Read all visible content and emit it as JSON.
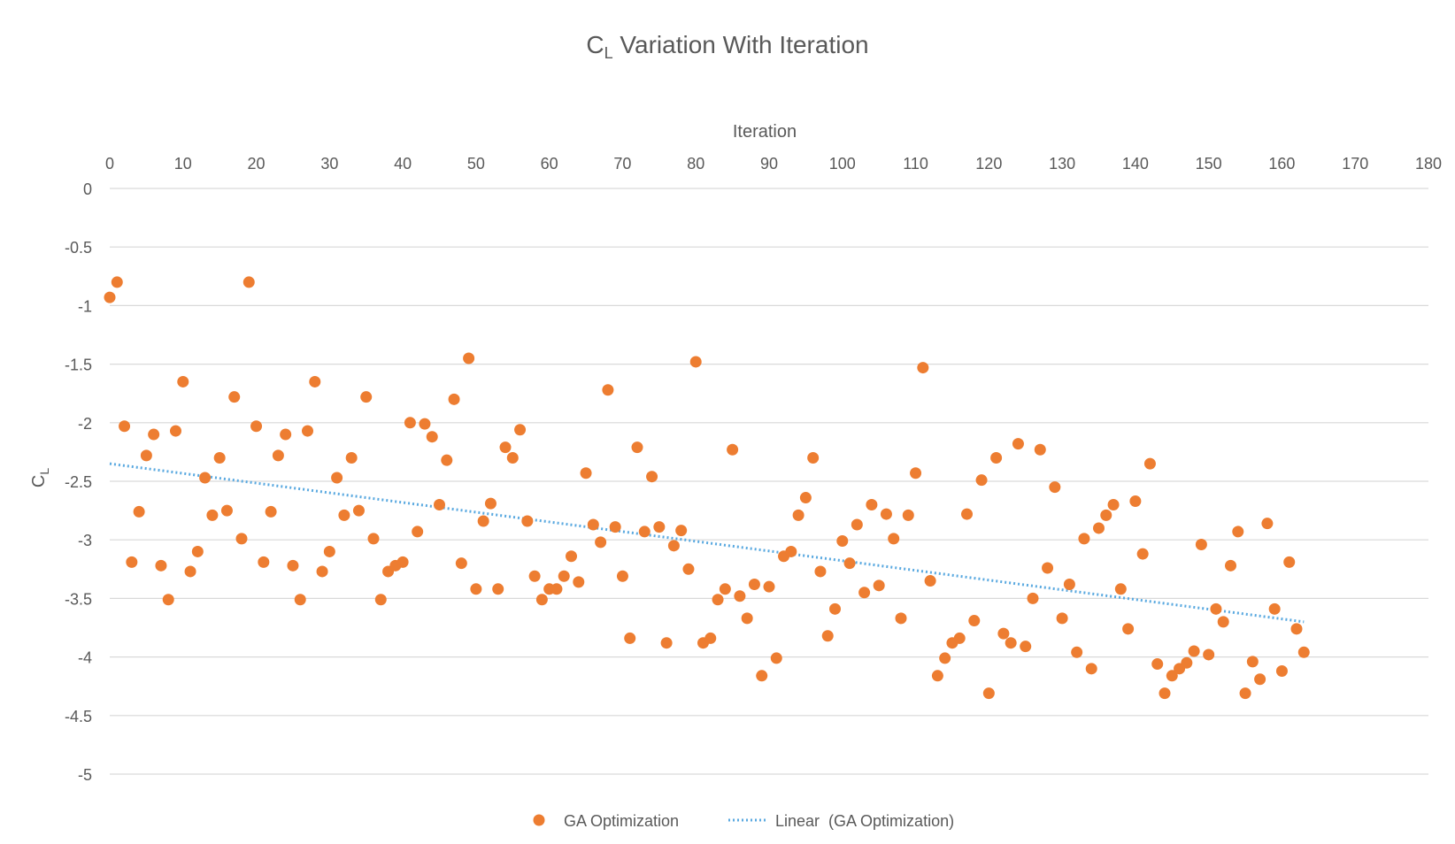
{
  "chart_data": {
    "type": "scatter",
    "title": "C",
    "title_subscript": "L",
    "title_rest": " Variation With Iteration",
    "xlabel": "Iteration",
    "xaxis_position": "top",
    "ylabel": "C",
    "ylabel_subscript": "L",
    "xlim": [
      0,
      180
    ],
    "ylim": [
      -5,
      0
    ],
    "x_ticks": [
      0,
      10,
      20,
      30,
      40,
      50,
      60,
      70,
      80,
      90,
      100,
      110,
      120,
      130,
      140,
      150,
      160,
      170,
      180
    ],
    "y_ticks": [
      0,
      -0.5,
      -1,
      -1.5,
      -2,
      -2.5,
      -3,
      -3.5,
      -4,
      -4.5,
      -5
    ],
    "grid": "horizontal",
    "legend_position": "bottom",
    "series": [
      {
        "name": "GA Optimization",
        "kind": "scatter",
        "color": "#ed7d31",
        "x": [
          0,
          1,
          2,
          3,
          4,
          5,
          6,
          7,
          8,
          9,
          10,
          11,
          12,
          13,
          14,
          15,
          16,
          17,
          18,
          19,
          20,
          21,
          22,
          23,
          24,
          25,
          26,
          27,
          28,
          29,
          30,
          31,
          32,
          33,
          34,
          35,
          36,
          37,
          38,
          39,
          40,
          41,
          42,
          43,
          44,
          45,
          46,
          47,
          48,
          49,
          50,
          51,
          52,
          53,
          54,
          55,
          56,
          57,
          58,
          59,
          60,
          61,
          62,
          63,
          64,
          65,
          66,
          67,
          68,
          69,
          70,
          71,
          72,
          73,
          74,
          75,
          76,
          77,
          78,
          79,
          80,
          81,
          82,
          83,
          84,
          85,
          86,
          87,
          88,
          89,
          90,
          91,
          92,
          93,
          94,
          95,
          96,
          97,
          98,
          99,
          100,
          101,
          102,
          103,
          104,
          105,
          106,
          107,
          108,
          109,
          110,
          111,
          112,
          113,
          114,
          115,
          116,
          117,
          118,
          119,
          120,
          121,
          122,
          123,
          124,
          125,
          126,
          127,
          128,
          129,
          130,
          131,
          132,
          133,
          134,
          135,
          136,
          137,
          138,
          139,
          140,
          141,
          142,
          143,
          144,
          145,
          146,
          147,
          148,
          149,
          150,
          151,
          152,
          153,
          154,
          155,
          156,
          157,
          158,
          159,
          160,
          161,
          162,
          163
        ],
        "y": [
          -0.93,
          -0.8,
          -2.03,
          -3.19,
          -2.76,
          -2.28,
          -2.1,
          -3.22,
          -3.51,
          -2.07,
          -1.65,
          -3.27,
          -3.1,
          -2.47,
          -2.79,
          -2.3,
          -2.75,
          -1.78,
          -2.99,
          -0.8,
          -2.03,
          -3.19,
          -2.76,
          -2.28,
          -2.1,
          -3.22,
          -3.51,
          -2.07,
          -1.65,
          -3.27,
          -3.1,
          -2.47,
          -2.79,
          -2.3,
          -2.75,
          -1.78,
          -2.99,
          -3.51,
          -3.27,
          -3.22,
          -3.19,
          -2.0,
          -2.93,
          -2.01,
          -2.12,
          -2.7,
          -2.32,
          -1.8,
          -3.2,
          -1.45,
          -3.42,
          -2.84,
          -2.69,
          -3.42,
          -2.21,
          -2.3,
          -2.06,
          -2.84,
          -3.31,
          -3.51,
          -3.42,
          -3.42,
          -3.31,
          -3.14,
          -3.36,
          -2.43,
          -2.87,
          -3.02,
          -1.72,
          -2.89,
          -3.31,
          -3.84,
          -2.21,
          -2.93,
          -2.46,
          -2.89,
          -3.88,
          -3.05,
          -2.92,
          -3.25,
          -1.48,
          -3.88,
          -3.84,
          -3.51,
          -3.42,
          -2.23,
          -3.48,
          -3.67,
          -3.38,
          -4.16,
          -3.4,
          -4.01,
          -3.14,
          -3.1,
          -2.79,
          -2.64,
          -2.3,
          -3.27,
          -3.82,
          -3.59,
          -3.01,
          -3.2,
          -2.87,
          -3.45,
          -2.7,
          -3.39,
          -2.78,
          -2.99,
          -3.67,
          -2.79,
          -2.43,
          -1.53,
          -3.35,
          -4.16,
          -4.01,
          -3.88,
          -3.84,
          -2.78,
          -3.69,
          -2.49,
          -4.31,
          -2.3,
          -3.8,
          -3.88,
          -2.18,
          -3.91,
          -3.5,
          -2.23,
          -3.24,
          -2.55,
          -3.67,
          -3.38,
          -3.96,
          -2.99,
          -4.1,
          -2.9,
          -2.79,
          -2.7,
          -3.42,
          -3.76,
          -2.67,
          -3.12,
          -2.35,
          -4.06,
          -4.31,
          -4.16,
          -4.1,
          -4.05,
          -3.95,
          -3.04,
          -3.98,
          -3.59,
          -3.7,
          -3.22,
          -2.93,
          -4.31,
          -4.04,
          -4.19,
          -2.86,
          -3.59,
          -4.12,
          -3.19,
          -3.76,
          -3.96
        ]
      },
      {
        "name": "Linear  (GA Optimization)",
        "kind": "trendline",
        "color": "#5aa9e0",
        "x": [
          0,
          163
        ],
        "y": [
          -2.35,
          -3.7
        ]
      }
    ]
  }
}
